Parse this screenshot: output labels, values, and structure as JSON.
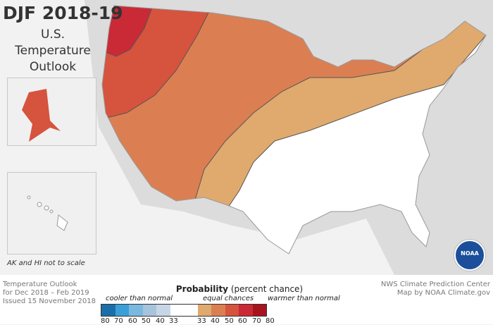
{
  "header": {
    "title": "DJF 2018-19",
    "subtitle_lines": [
      "U.S.",
      "Temperature",
      "Outlook"
    ]
  },
  "inset_note": "AK and HI not to scale",
  "footer": {
    "left_lines": [
      "Temperature Outlook",
      "for Dec 2018 – Feb 2019",
      "Issued 15 November 2018"
    ],
    "right_lines": [
      "NWS Climate Prediction Center",
      "Map by NOAA Climate.gov"
    ]
  },
  "legend": {
    "title_bold": "Probability",
    "title_rest": " (percent chance)",
    "cooler": "cooler than normal",
    "equal": "equal chances",
    "warmer": "warmer than normal",
    "colors": [
      "#1a6fa8",
      "#3a9fd8",
      "#7ab8e0",
      "#a6c4dc",
      "#c6d6e6",
      "#ffffff",
      "#e0a96d",
      "#db7f52",
      "#d6533d",
      "#c92a36",
      "#a8141e"
    ],
    "ticks": [
      "80",
      "70",
      "60",
      "50",
      "40",
      "33",
      "33",
      "40",
      "50",
      "60",
      "70",
      "80"
    ]
  },
  "logo_text": "NOAA",
  "map_categories": {
    "equal_chances": "#ffffff",
    "above_33_40": "#e0a96d",
    "above_40_50": "#db7f52",
    "above_50_60": "#d6533d",
    "above_60_70": "#c92a36"
  }
}
